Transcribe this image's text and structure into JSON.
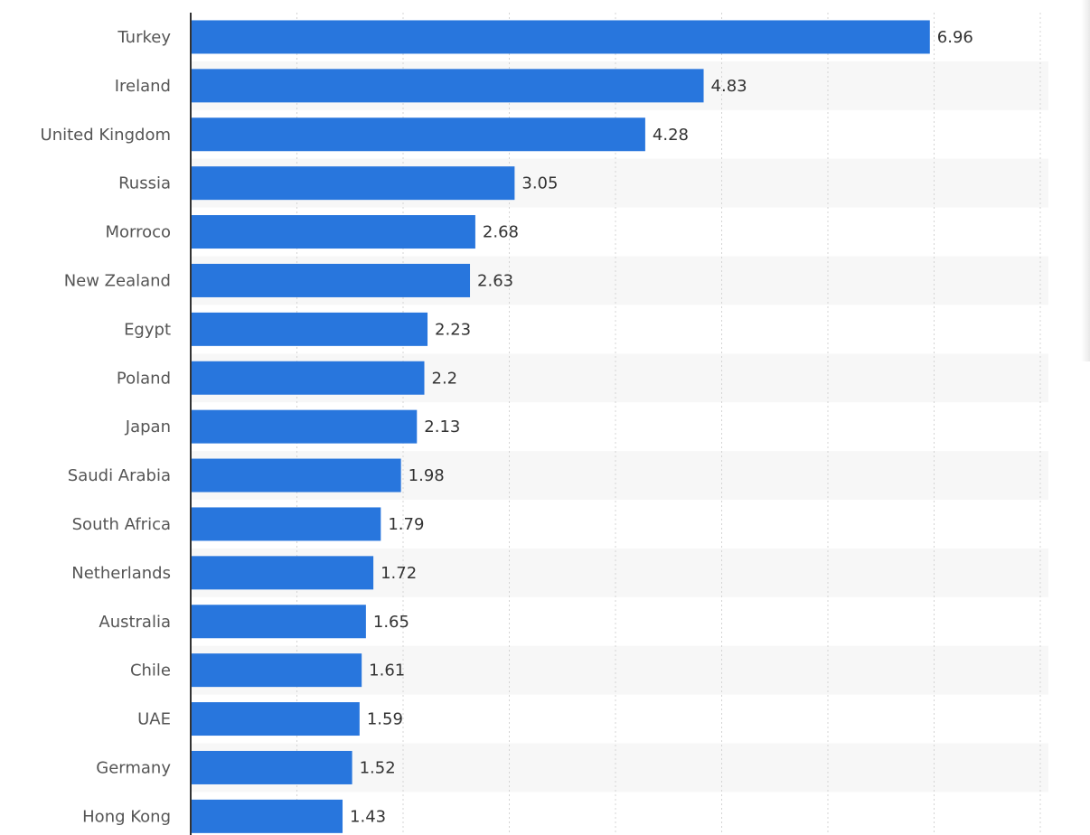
{
  "chart_data": {
    "type": "bar",
    "orientation": "horizontal",
    "categories": [
      "Turkey",
      "Ireland",
      "United Kingdom",
      "Russia",
      "Morroco",
      "New Zealand",
      "Egypt",
      "Poland",
      "Japan",
      "Saudi Arabia",
      "South Africa",
      "Netherlands",
      "Australia",
      "Chile",
      "UAE",
      "Germany",
      "Hong Kong"
    ],
    "values": [
      6.96,
      4.83,
      4.28,
      3.05,
      2.68,
      2.63,
      2.23,
      2.2,
      2.13,
      1.98,
      1.79,
      1.72,
      1.65,
      1.61,
      1.59,
      1.52,
      1.43
    ],
    "value_labels": [
      "6.96",
      "4.83",
      "4.28",
      "3.05",
      "2.68",
      "2.63",
      "2.23",
      "2.2",
      "2.13",
      "1.98",
      "1.79",
      "1.72",
      "1.65",
      "1.61",
      "1.59",
      "1.52",
      "1.43"
    ],
    "xlim": [
      0,
      8
    ],
    "x_grid_step": 1,
    "grid": true,
    "bar_color": "#2876dd",
    "title": "",
    "xlabel": "",
    "ylabel": ""
  }
}
